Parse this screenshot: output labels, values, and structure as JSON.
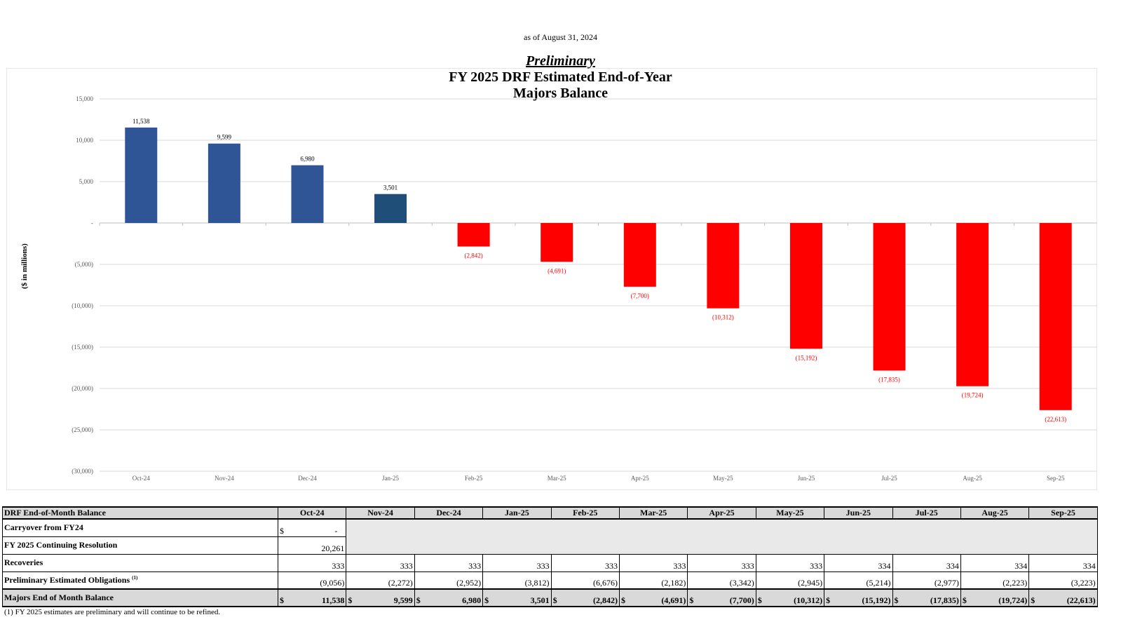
{
  "as_of": "as of August 31, 2024",
  "prelim_label": "Preliminary",
  "chart_data": {
    "type": "bar",
    "title_line1": "FY 2025 DRF Estimated End-of-Year",
    "title_line2": "Majors Balance",
    "ylabel": "($ in millions)",
    "xlabel": "",
    "ylim": [
      -30000,
      15000
    ],
    "yticks": [
      15000,
      10000,
      5000,
      0,
      -5000,
      -10000,
      -15000,
      -20000,
      -25000,
      -30000
    ],
    "ytick_labels": [
      "15,000",
      "10,000",
      "5,000",
      "-",
      "(5,000)",
      "(10,000)",
      "(15,000)",
      "(20,000)",
      "(25,000)",
      "(30,000)"
    ],
    "categories": [
      "Oct-24",
      "Nov-24",
      "Dec-24",
      "Jan-25",
      "Feb-25",
      "Mar-25",
      "Apr-25",
      "May-25",
      "Jun-25",
      "Jul-25",
      "Aug-25",
      "Sep-25"
    ],
    "values": [
      11538,
      9599,
      6980,
      3501,
      -2842,
      -4691,
      -7700,
      -10312,
      -15192,
      -17835,
      -19724,
      -22613
    ],
    "value_labels": [
      "11,538",
      "9,599",
      "6,980",
      "3,501",
      "(2,842)",
      "(4,691)",
      "(7,700)",
      "(10,312)",
      "(15,192)",
      "(17,835)",
      "(19,724)",
      "(22,613)"
    ],
    "grid": true,
    "colors": {
      "positive": "#2f5597",
      "current": "#1f4e79",
      "negative": "#ff0000",
      "negative_label": "#ff0000"
    }
  },
  "table": {
    "header_label": "DRF End-of-Month Balance",
    "months": [
      "Oct-24",
      "Nov-24",
      "Dec-24",
      "Jan-25",
      "Feb-25",
      "Mar-25",
      "Apr-25",
      "May-25",
      "Jun-25",
      "Jul-25",
      "Aug-25",
      "Sep-25"
    ],
    "carryover": {
      "label": "Carryover from FY24",
      "currency": "$",
      "value": "-"
    },
    "cr": {
      "label": "FY 2025 Continuing Resolution",
      "value": "20,261"
    },
    "recoveries": {
      "label": "Recoveries",
      "values": [
        "333",
        "333",
        "333",
        "333",
        "333",
        "333",
        "333",
        "333",
        "334",
        "334",
        "334",
        "334"
      ]
    },
    "obligations": {
      "label": "Preliminary Estimated Obligations",
      "footnote_mark": "(1)",
      "values": [
        "(9,056)",
        "(2,272)",
        "(2,952)",
        "(3,812)",
        "(6,676)",
        "(2,182)",
        "(3,342)",
        "(2,945)",
        "(5,214)",
        "(2,977)",
        "(2,223)",
        "(3,223)"
      ]
    },
    "total": {
      "label": "Majors End of Month Balance",
      "currency": "$",
      "values": [
        "11,538",
        "9,599",
        "6,980",
        "3,501",
        "(2,842)",
        "(4,691)",
        "(7,700)",
        "(10,312)",
        "(15,192)",
        "(17,835)",
        "(19,724)",
        "(22,613)"
      ]
    }
  },
  "footnote": "(1) FY 2025 estimates are preliminary and will continue to be refined."
}
